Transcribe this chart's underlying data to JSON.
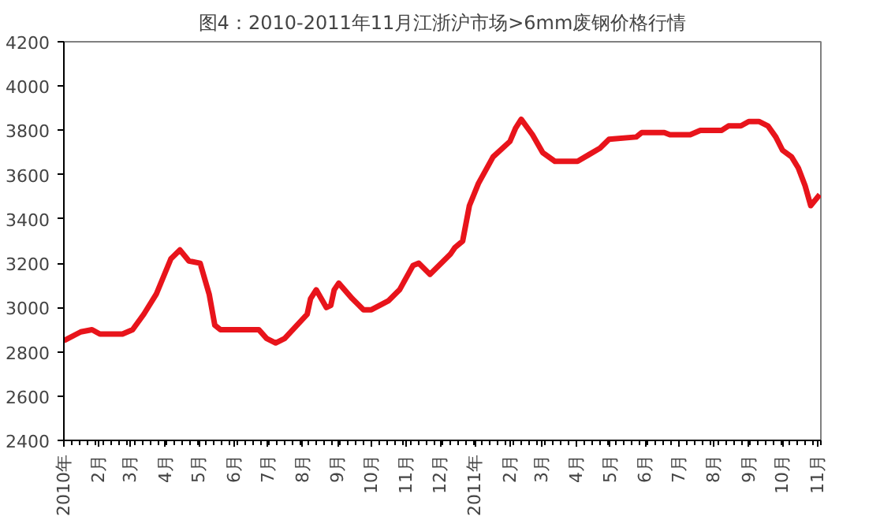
{
  "chart_data": {
    "type": "line",
    "title": "图4：2010-2011年11月江浙沪市场>6mm废钢价格行情",
    "x": [
      "2010-01-01",
      "2010-01-16",
      "2010-01-26",
      "2010-02-02",
      "2010-02-22",
      "2010-03-03",
      "2010-03-13",
      "2010-03-24",
      "2010-04-06",
      "2010-04-14",
      "2010-04-22",
      "2010-05-02",
      "2010-05-10",
      "2010-05-15",
      "2010-05-20",
      "2010-06-23",
      "2010-06-30",
      "2010-07-08",
      "2010-07-16",
      "2010-08-05",
      "2010-08-08",
      "2010-08-13",
      "2010-08-22",
      "2010-08-26",
      "2010-08-29",
      "2010-09-02",
      "2010-09-14",
      "2010-09-24",
      "2010-10-01",
      "2010-10-16",
      "2010-10-26",
      "2010-11-07",
      "2010-11-12",
      "2010-11-22",
      "2010-12-10",
      "2010-12-14",
      "2010-12-21",
      "2010-12-27",
      "2011-01-04",
      "2011-01-17",
      "2011-02-01",
      "2011-02-06",
      "2011-02-11",
      "2011-02-21",
      "2011-03-02",
      "2011-03-13",
      "2011-04-02",
      "2011-04-12",
      "2011-04-22",
      "2011-04-30",
      "2011-05-24",
      "2011-05-29",
      "2011-06-18",
      "2011-06-23",
      "2011-07-11",
      "2011-07-20",
      "2011-08-08",
      "2011-08-14",
      "2011-08-25",
      "2011-09-01",
      "2011-09-10",
      "2011-09-18",
      "2011-09-25",
      "2011-10-01",
      "2011-10-09",
      "2011-10-15",
      "2011-10-21",
      "2011-10-26",
      "2011-11-03"
    ],
    "series": [
      {
        "color": "#e8141b",
        "values": [
          2850,
          2890,
          2900,
          2880,
          2880,
          2900,
          2970,
          3060,
          3220,
          3260,
          3210,
          3200,
          3060,
          2920,
          2900,
          2900,
          2860,
          2840,
          2860,
          2970,
          3040,
          3080,
          3000,
          3010,
          3080,
          3110,
          3040,
          2990,
          2990,
          3030,
          3080,
          3190,
          3200,
          3150,
          3240,
          3270,
          3300,
          3460,
          3560,
          3680,
          3750,
          3810,
          3850,
          3780,
          3700,
          3660,
          3660,
          3690,
          3720,
          3760,
          3770,
          3790,
          3790,
          3780,
          3780,
          3800,
          3800,
          3820,
          3820,
          3840,
          3840,
          3820,
          3770,
          3710,
          3680,
          3630,
          3550,
          3460,
          3510
        ]
      }
    ],
    "xlim": [
      "2010-01-01",
      "2011-11-04"
    ],
    "ylim": [
      2400,
      4200
    ],
    "yticks": [
      2400,
      2600,
      2800,
      3000,
      3200,
      3400,
      3600,
      3800,
      4000,
      4200
    ],
    "xticks": [
      {
        "value": "2010-01-01",
        "label": "2010年"
      },
      {
        "value": "2010-02-01",
        "label": "2月"
      },
      {
        "value": "2010-03-01",
        "label": "3月"
      },
      {
        "value": "2010-04-01",
        "label": "4月"
      },
      {
        "value": "2010-05-01",
        "label": "5月"
      },
      {
        "value": "2010-06-01",
        "label": "6月"
      },
      {
        "value": "2010-07-01",
        "label": "7月"
      },
      {
        "value": "2010-08-01",
        "label": "8月"
      },
      {
        "value": "2010-09-01",
        "label": "9月"
      },
      {
        "value": "2010-10-01",
        "label": "10月"
      },
      {
        "value": "2010-11-01",
        "label": "11月"
      },
      {
        "value": "2010-12-01",
        "label": "12月"
      },
      {
        "value": "2011-01-01",
        "label": "2011年"
      },
      {
        "value": "2011-02-01",
        "label": "2月"
      },
      {
        "value": "2011-03-01",
        "label": "3月"
      },
      {
        "value": "2011-04-01",
        "label": "4月"
      },
      {
        "value": "2011-05-01",
        "label": "5月"
      },
      {
        "value": "2011-06-01",
        "label": "6月"
      },
      {
        "value": "2011-07-01",
        "label": "7月"
      },
      {
        "value": "2011-08-01",
        "label": "8月"
      },
      {
        "value": "2011-09-01",
        "label": "9月"
      },
      {
        "value": "2011-10-01",
        "label": "10月"
      },
      {
        "value": "2011-11-01",
        "label": "11月"
      }
    ]
  }
}
